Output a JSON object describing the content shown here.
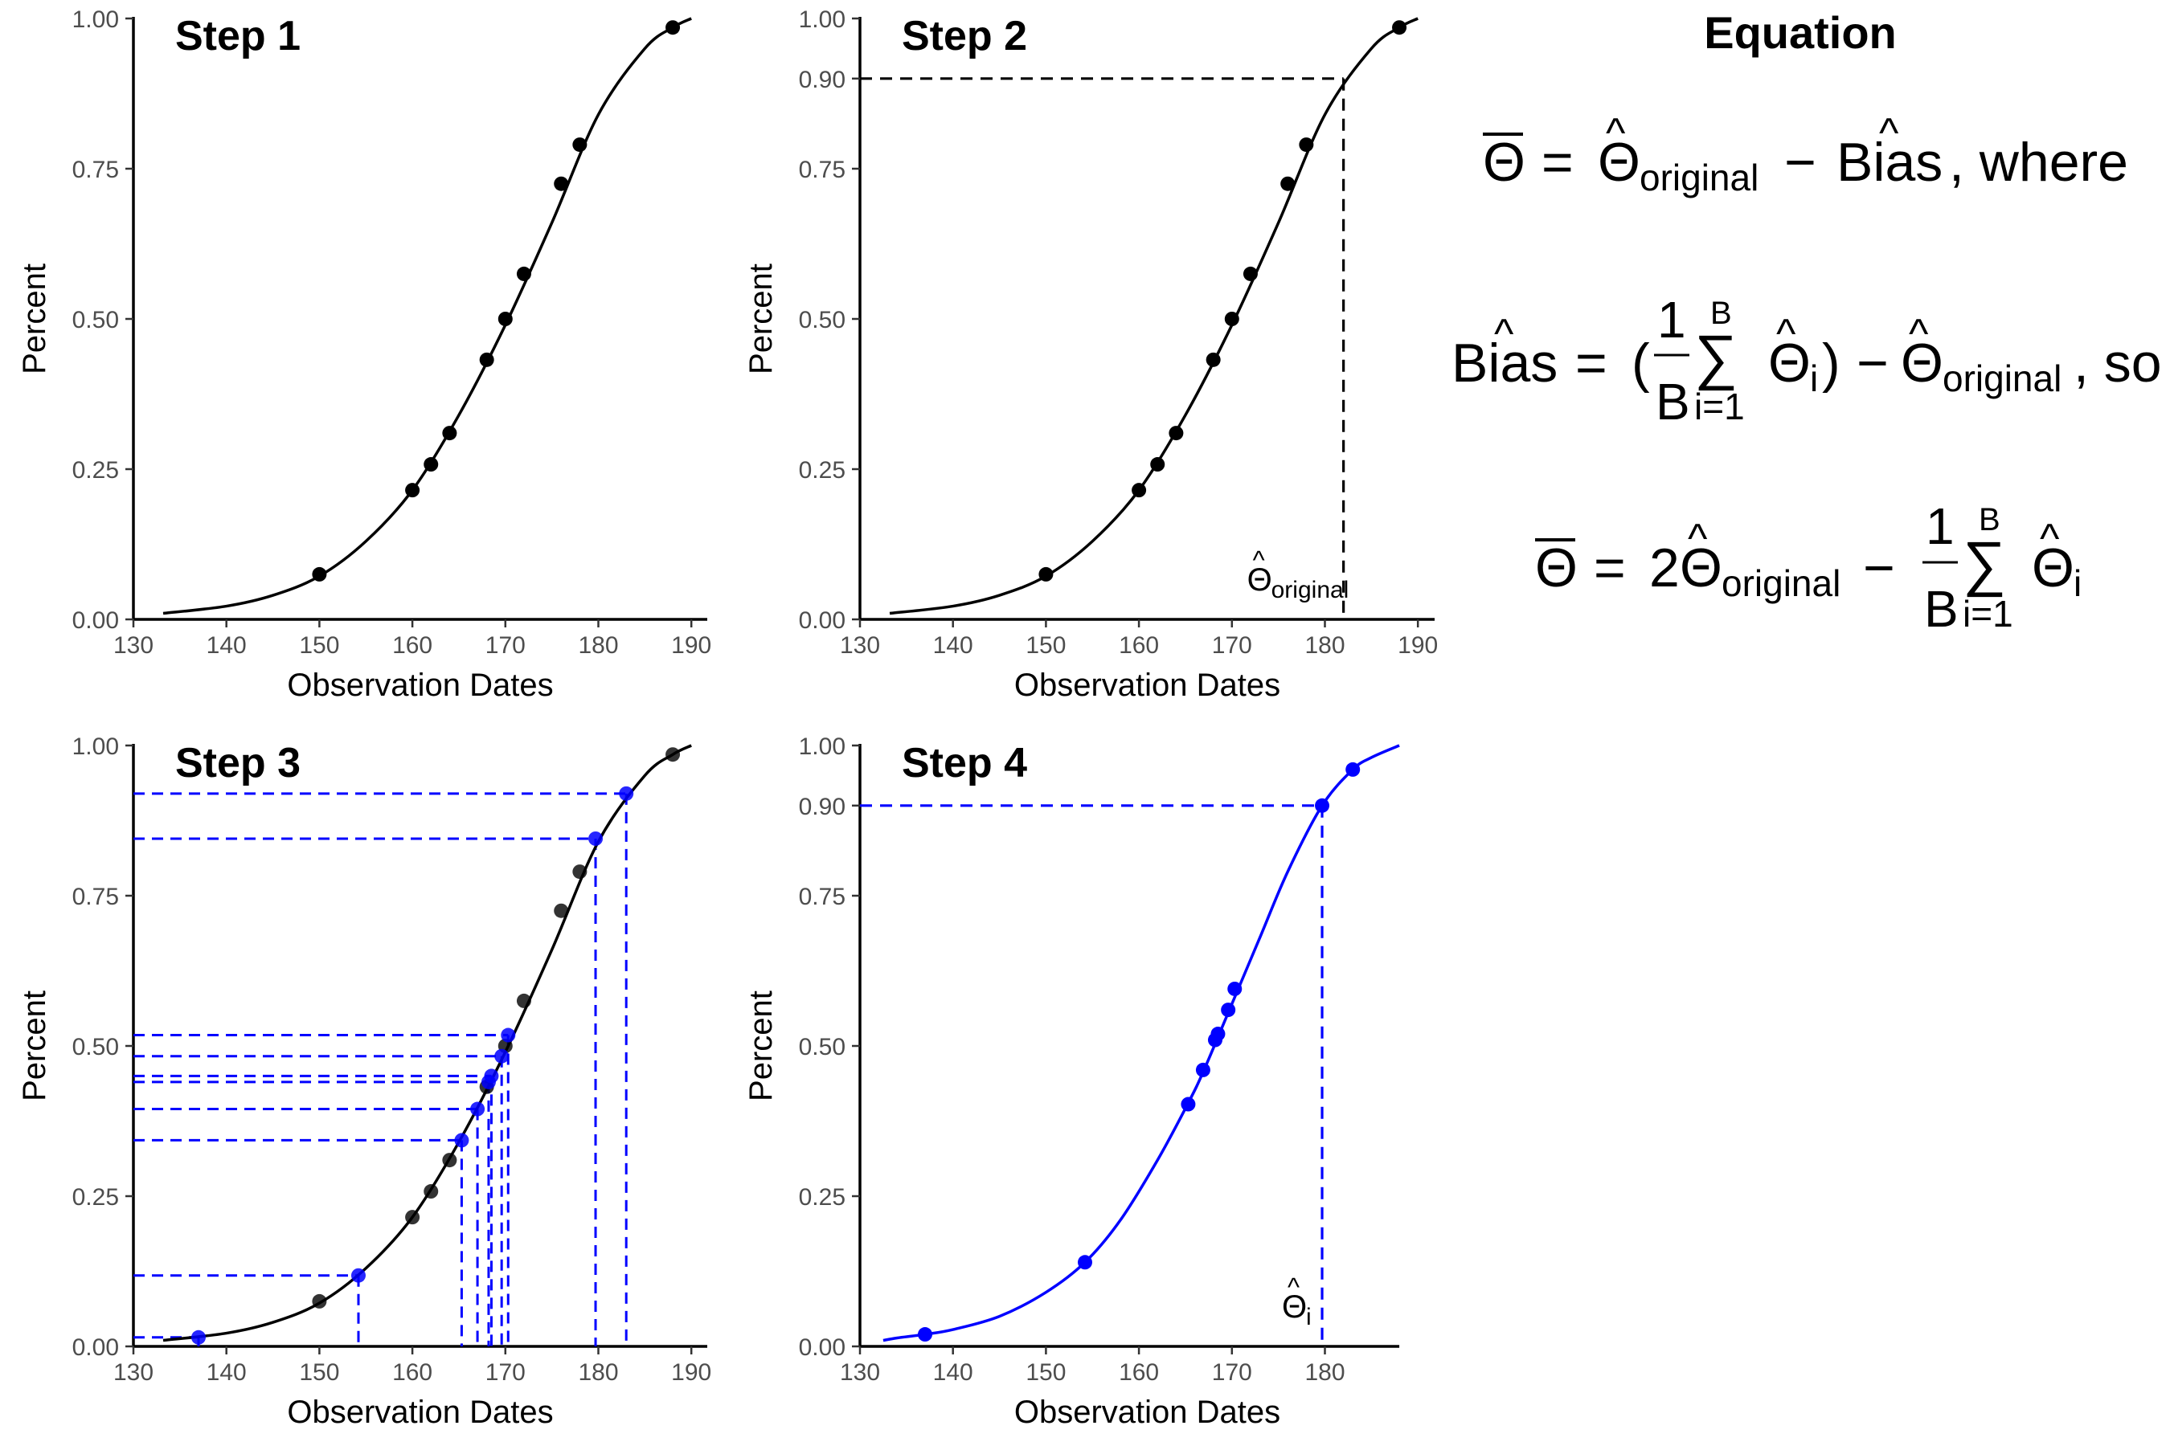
{
  "chart_data": [
    {
      "type": "line",
      "title": "Step 1",
      "xlabel": "Observation Dates",
      "ylabel": "Percent",
      "xlim": [
        130,
        192
      ],
      "ylim": [
        0,
        1
      ],
      "xticks": [
        "130",
        "140",
        "150",
        "160",
        "170",
        "180",
        "190"
      ],
      "yticks": [
        "0.00",
        "0.25",
        "0.50",
        "0.75",
        "1.00"
      ],
      "grid": false,
      "legend": "none",
      "color": "#000000",
      "curve": {
        "x": [
          133.2,
          140,
          145,
          150,
          155,
          160,
          165,
          170,
          175,
          180,
          185,
          188,
          190
        ],
        "y": [
          0.01,
          0.022,
          0.04,
          0.072,
          0.13,
          0.215,
          0.34,
          0.49,
          0.66,
          0.84,
          0.95,
          0.985,
          1.0
        ]
      },
      "points": {
        "x": [
          150,
          160,
          162,
          164,
          168,
          170,
          172,
          176,
          178,
          188
        ],
        "y": [
          0.075,
          0.215,
          0.258,
          0.31,
          0.432,
          0.5,
          0.575,
          0.725,
          0.79,
          0.985
        ]
      }
    },
    {
      "type": "line",
      "title": "Step 2",
      "xlabel": "Observation Dates",
      "ylabel": "Percent",
      "xlim": [
        130,
        192
      ],
      "ylim": [
        0,
        1
      ],
      "xticks": [
        "130",
        "140",
        "150",
        "160",
        "170",
        "180",
        "190"
      ],
      "yticks": [
        "0.00",
        "0.25",
        "0.50",
        "0.75",
        "0.90",
        "1.00"
      ],
      "grid": false,
      "legend": "none",
      "color": "#000000",
      "reference": {
        "x": 182,
        "y": 0.9,
        "label": "Θ",
        "label_sub": "original",
        "label_hat": "^"
      },
      "curve": {
        "x": [
          133.2,
          140,
          145,
          150,
          155,
          160,
          165,
          170,
          175,
          180,
          185,
          188,
          190
        ],
        "y": [
          0.01,
          0.022,
          0.04,
          0.072,
          0.13,
          0.215,
          0.34,
          0.49,
          0.66,
          0.84,
          0.95,
          0.985,
          1.0
        ]
      },
      "points": {
        "x": [
          150,
          160,
          162,
          164,
          168,
          170,
          172,
          176,
          178,
          188
        ],
        "y": [
          0.075,
          0.215,
          0.258,
          0.31,
          0.432,
          0.5,
          0.575,
          0.725,
          0.79,
          0.985
        ]
      }
    },
    {
      "type": "line",
      "title": "Step 3",
      "xlabel": "Observation Dates",
      "ylabel": "Percent",
      "xlim": [
        130,
        192
      ],
      "ylim": [
        0,
        1
      ],
      "xticks": [
        "130",
        "140",
        "150",
        "160",
        "170",
        "180",
        "190"
      ],
      "yticks": [
        "0.00",
        "0.25",
        "0.50",
        "0.75",
        "1.00"
      ],
      "grid": false,
      "legend": "none",
      "color": "#000000",
      "sample_color": "#0000ff",
      "curve": {
        "x": [
          133.2,
          140,
          145,
          150,
          155,
          160,
          165,
          170,
          175,
          180,
          185,
          188,
          190
        ],
        "y": [
          0.01,
          0.022,
          0.04,
          0.072,
          0.13,
          0.215,
          0.34,
          0.49,
          0.66,
          0.84,
          0.95,
          0.985,
          1.0
        ]
      },
      "points": {
        "x": [
          150,
          160,
          162,
          164,
          168,
          170,
          172,
          176,
          178,
          188
        ],
        "y": [
          0.075,
          0.215,
          0.258,
          0.31,
          0.432,
          0.5,
          0.575,
          0.725,
          0.79,
          0.985
        ]
      },
      "samples": {
        "x": [
          137,
          154.2,
          165.3,
          167,
          168.2,
          168.5,
          169.6,
          170.3,
          179.7,
          183
        ],
        "y": [
          0.015,
          0.118,
          0.343,
          0.395,
          0.44,
          0.45,
          0.483,
          0.518,
          0.845,
          0.92
        ]
      }
    },
    {
      "type": "line",
      "title": "Step 4",
      "xlabel": "Observation Dates",
      "ylabel": "Percent",
      "xlim": [
        130,
        188
      ],
      "ylim": [
        0,
        1
      ],
      "xticks": [
        "130",
        "140",
        "150",
        "160",
        "170",
        "180"
      ],
      "yticks": [
        "0.00",
        "0.25",
        "0.50",
        "0.75",
        "0.90",
        "1.00"
      ],
      "grid": false,
      "legend": "none",
      "color": "#0000ff",
      "reference": {
        "x": 179.7,
        "y": 0.9,
        "label": "Θ",
        "label_sub": "i",
        "label_hat": "^"
      },
      "curve": {
        "x": [
          132.5,
          134,
          137,
          140,
          145,
          150,
          154.2,
          158,
          162,
          165.3,
          167,
          170,
          173,
          176,
          179.7,
          183,
          185,
          188
        ],
        "y": [
          0.01,
          0.014,
          0.02,
          0.028,
          0.05,
          0.09,
          0.14,
          0.21,
          0.31,
          0.405,
          0.46,
          0.57,
          0.68,
          0.79,
          0.9,
          0.96,
          0.98,
          1.0
        ]
      },
      "points": {
        "x": [
          137,
          154.2,
          165.3,
          166.9,
          168.2,
          168.5,
          169.6,
          170.3,
          179.7,
          183
        ],
        "y": [
          0.02,
          0.14,
          0.403,
          0.46,
          0.51,
          0.52,
          0.56,
          0.595,
          0.9,
          0.96
        ]
      }
    }
  ],
  "equation": {
    "title": "Equation",
    "line1": {
      "lhs": "Θ",
      "eq": "=",
      "theta": "Θ",
      "hat": "^",
      "sub": "original",
      "minus": "−",
      "bias": "Bias",
      "bias_hat": "^",
      "tail": ", where"
    },
    "line2": {
      "bias": "Bias",
      "bias_hat": "^",
      "eq": "=",
      "open": "(",
      "num": "1",
      "den": "B",
      "sum": "∑",
      "sum_top": "B",
      "sum_bot": "i=1",
      "theta": "Θ",
      "hat": "^",
      "sub_i": "i",
      "close": ")",
      "minus": "−",
      "theta2": "Θ",
      "sub2": "original",
      "tail": ", so"
    },
    "line3": {
      "lhs": "Θ",
      "eq": "=",
      "coef": "2",
      "theta": "Θ",
      "hat": "^",
      "sub": "original",
      "minus": "−",
      "num": "1",
      "den": "B",
      "sum": "∑",
      "sum_top": "B",
      "sum_bot": "i=1",
      "theta2": "Θ",
      "sub_i": "i"
    }
  }
}
